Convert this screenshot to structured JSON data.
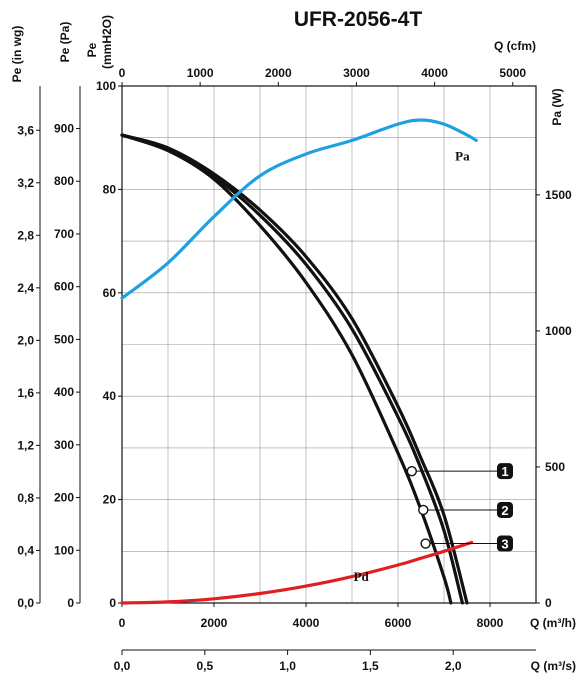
{
  "chart_data": {
    "type": "line",
    "title": "UFR-2056-4T",
    "axes": {
      "pe_inwg": {
        "label": "Pe (in wg)",
        "ticks": [
          "0,0",
          "0,4",
          "0,8",
          "1,2",
          "1,6",
          "2,0",
          "2,4",
          "2,8",
          "3,2",
          "3,6"
        ]
      },
      "pe_pa": {
        "label": "Pe (Pa)",
        "ticks": [
          "0",
          "100",
          "200",
          "300",
          "400",
          "500",
          "600",
          "700",
          "800",
          "900"
        ]
      },
      "pe_mmh2o": {
        "label_line1": "Pe",
        "label_line2": "(mmH2O)",
        "ticks": [
          "0",
          "20",
          "40",
          "60",
          "80",
          "100"
        ],
        "ylim": [
          0,
          100
        ]
      },
      "pa_w": {
        "label": "Pa (W)",
        "ticks": [
          "0",
          "500",
          "1000",
          "1500"
        ],
        "ylim": [
          0,
          1900
        ]
      },
      "q_m3h": {
        "label": "Q (m³/h)",
        "ticks": [
          "0",
          "2000",
          "4000",
          "6000",
          "8000"
        ],
        "xlim": [
          0,
          9000
        ]
      },
      "q_cfm": {
        "label": "Q (cfm)",
        "ticks": [
          "0",
          "1000",
          "2000",
          "3000",
          "4000",
          "5000"
        ]
      },
      "q_m3s": {
        "label": "Q (m³/s)",
        "ticks": [
          "0,0",
          "0,5",
          "1,0",
          "1,5",
          "2,0"
        ]
      }
    },
    "grid": true,
    "series": [
      {
        "name": "1",
        "axis": "pe_mmh2o",
        "color": "#111111",
        "x": [
          0,
          1000,
          2000,
          3000,
          4000,
          5000,
          6000,
          6500,
          7000,
          7500
        ],
        "y": [
          90.5,
          88,
          83,
          76,
          67,
          55,
          38,
          28,
          17,
          0
        ]
      },
      {
        "name": "2",
        "axis": "pe_mmh2o",
        "color": "#111111",
        "x": [
          0,
          1000,
          2000,
          3000,
          4000,
          5000,
          6000,
          6500,
          7000,
          7400
        ],
        "y": [
          90.5,
          88,
          82.5,
          75,
          65.5,
          53,
          36,
          26,
          14,
          0
        ]
      },
      {
        "name": "3",
        "axis": "pe_mmh2o",
        "color": "#111111",
        "x": [
          0,
          1000,
          2000,
          3000,
          4000,
          5000,
          6000,
          6500,
          7000,
          7150
        ],
        "y": [
          90.5,
          87.5,
          82,
          73,
          62,
          48,
          29,
          18,
          5,
          0
        ]
      },
      {
        "name": "Pa",
        "axis": "pa_w",
        "color": "#1fa0e0",
        "x": [
          0,
          1000,
          2000,
          3000,
          4000,
          5000,
          6000,
          6500,
          7000,
          7500,
          7700
        ],
        "y": [
          1120,
          1250,
          1420,
          1570,
          1650,
          1700,
          1760,
          1775,
          1760,
          1720,
          1700
        ]
      },
      {
        "name": "Pd",
        "axis": "pe_pa",
        "color": "#e02020",
        "x": [
          0,
          1000,
          2000,
          3000,
          4000,
          5000,
          6000,
          6500,
          7000,
          7600
        ],
        "y": [
          0,
          2,
          8,
          18,
          32,
          50,
          72,
          85,
          98,
          115
        ]
      }
    ],
    "markers": [
      {
        "label": "1",
        "x": 6300,
        "y": 25.5
      },
      {
        "label": "2",
        "x": 6550,
        "y": 18
      },
      {
        "label": "3",
        "x": 6600,
        "y": 11.5
      }
    ],
    "curve_labels": [
      {
        "text": "Pa",
        "x": 7400,
        "y": 1685,
        "axis": "pa_w"
      },
      {
        "text": "Pd",
        "x": 5200,
        "y": 72,
        "axis": "pe_pa"
      }
    ]
  }
}
